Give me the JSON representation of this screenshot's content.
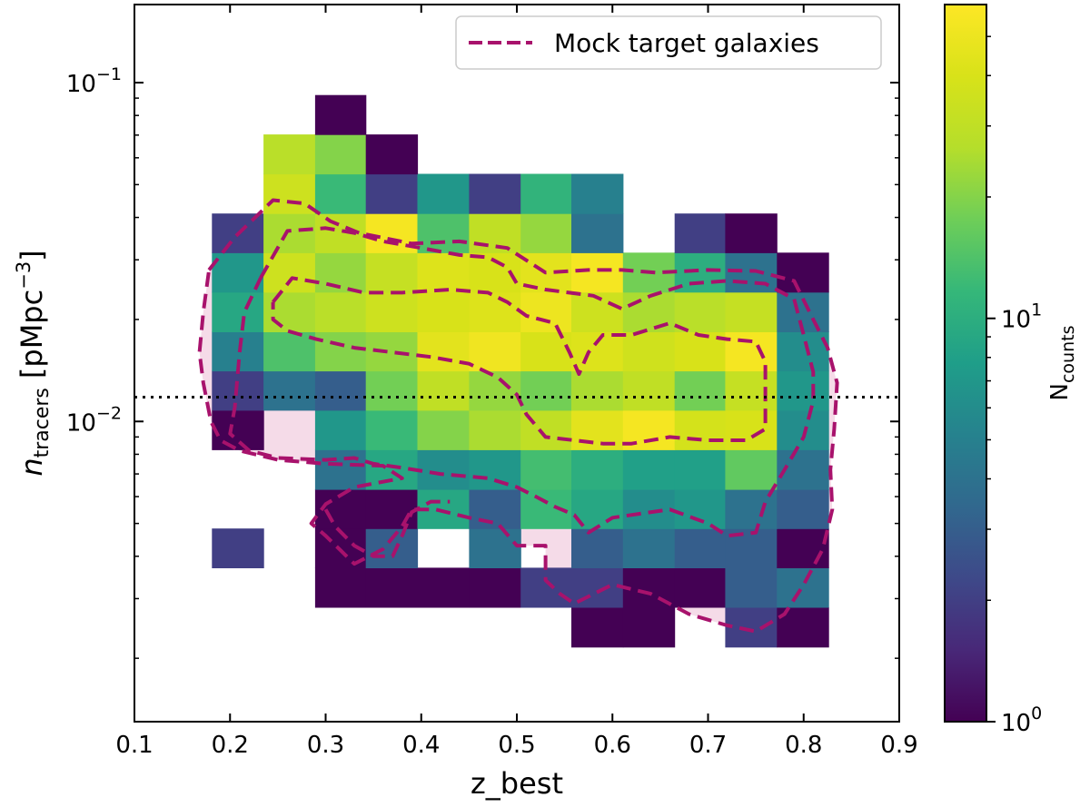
{
  "chart_data": {
    "type": "heatmap",
    "scale": "log2d",
    "xlabel": "z_best",
    "ylabel_main": "n",
    "ylabel_sub": "tracers",
    "ylabel_unit": "[pMpc",
    "ylabel_unit_exp": "−3",
    "ylabel_unit_close": "]",
    "xlim": [
      0.1,
      0.9
    ],
    "ylim": [
      0.0013,
      0.17
    ],
    "x_ticks": [
      {
        "value": 0.1,
        "label": "0.1"
      },
      {
        "value": 0.2,
        "label": "0.2"
      },
      {
        "value": 0.3,
        "label": "0.3"
      },
      {
        "value": 0.4,
        "label": "0.4"
      },
      {
        "value": 0.5,
        "label": "0.5"
      },
      {
        "value": 0.6,
        "label": "0.6"
      },
      {
        "value": 0.7,
        "label": "0.7"
      },
      {
        "value": 0.8,
        "label": "0.8"
      },
      {
        "value": 0.9,
        "label": "0.9"
      }
    ],
    "y_major_ticks": [
      {
        "value": 0.1,
        "base": "10",
        "exp": "−1"
      },
      {
        "value": 0.01,
        "base": "10",
        "exp": "−2"
      }
    ],
    "y_minor_ticks": [
      0.002,
      0.003,
      0.004,
      0.005,
      0.006,
      0.007,
      0.008,
      0.009,
      0.02,
      0.03,
      0.04,
      0.05,
      0.06,
      0.07,
      0.08,
      0.09
    ],
    "x_bin_edges": [
      0.181,
      0.235,
      0.289,
      0.342,
      0.396,
      0.45,
      0.504,
      0.557,
      0.611,
      0.665,
      0.718,
      0.772,
      0.826
    ],
    "y_bin_edges": [
      0.00216,
      0.00283,
      0.0037,
      0.00483,
      0.00631,
      0.00826,
      0.0108,
      0.0141,
      0.0184,
      0.0241,
      0.0315,
      0.0411,
      0.0538,
      0.0703,
      0.0919
    ],
    "counts": [
      [
        0,
        0,
        0,
        0,
        0,
        0,
        0,
        1,
        1,
        0,
        2,
        1
      ],
      [
        0,
        0,
        1,
        1,
        1,
        1,
        2,
        2,
        1,
        1,
        3,
        4
      ],
      [
        2,
        0,
        1,
        3,
        0,
        4,
        0,
        3,
        4,
        3,
        3,
        1
      ],
      [
        0,
        0,
        1,
        1,
        9,
        3,
        12,
        9,
        6,
        7,
        4,
        3
      ],
      [
        0,
        0,
        4,
        9,
        6,
        7,
        13,
        10,
        8,
        8,
        16,
        4
      ],
      [
        1,
        0,
        7,
        12,
        20,
        25,
        30,
        45,
        55,
        38,
        40,
        6
      ],
      [
        2,
        4,
        3,
        18,
        30,
        22,
        18,
        25,
        30,
        18,
        32,
        7
      ],
      [
        5,
        14,
        20,
        22,
        45,
        52,
        40,
        42,
        36,
        40,
        55,
        6
      ],
      [
        9,
        25,
        28,
        35,
        40,
        42,
        50,
        35,
        25,
        28,
        32,
        4
      ],
      [
        7,
        35,
        22,
        32,
        42,
        40,
        45,
        55,
        18,
        10,
        4,
        1
      ],
      [
        2,
        25,
        30,
        55,
        14,
        30,
        22,
        4,
        0,
        2,
        1,
        0
      ],
      [
        0,
        35,
        12,
        2,
        7,
        2,
        11,
        5,
        0,
        0,
        0,
        0
      ],
      [
        0,
        28,
        20,
        1,
        0,
        0,
        0,
        0,
        0,
        0,
        0,
        0
      ],
      [
        0,
        0,
        1,
        0,
        0,
        0,
        0,
        0,
        0,
        0,
        0,
        0
      ]
    ],
    "reference_line": {
      "y": 0.0118,
      "style": "dotted",
      "color": "#000000"
    },
    "contour_color": "#a8126c",
    "contour_fill": "#f5dbe8",
    "contours": [
      {
        "name": "outer",
        "filled": true,
        "points": [
          [
            0.178,
            0.028
          ],
          [
            0.205,
            0.035
          ],
          [
            0.245,
            0.045
          ],
          [
            0.278,
            0.044
          ],
          [
            0.305,
            0.039
          ],
          [
            0.335,
            0.036
          ],
          [
            0.39,
            0.0335
          ],
          [
            0.44,
            0.034
          ],
          [
            0.49,
            0.0325
          ],
          [
            0.53,
            0.0275
          ],
          [
            0.575,
            0.028
          ],
          [
            0.61,
            0.028
          ],
          [
            0.645,
            0.0275
          ],
          [
            0.7,
            0.028
          ],
          [
            0.75,
            0.0278
          ],
          [
            0.79,
            0.026
          ],
          [
            0.81,
            0.02
          ],
          [
            0.825,
            0.0165
          ],
          [
            0.835,
            0.013
          ],
          [
            0.832,
            0.0095
          ],
          [
            0.828,
            0.0072
          ],
          [
            0.83,
            0.0055
          ],
          [
            0.82,
            0.0042
          ],
          [
            0.8,
            0.0033
          ],
          [
            0.78,
            0.0027
          ],
          [
            0.75,
            0.0024
          ],
          [
            0.72,
            0.0025
          ],
          [
            0.68,
            0.0027
          ],
          [
            0.64,
            0.0031
          ],
          [
            0.6,
            0.0033
          ],
          [
            0.56,
            0.0029
          ],
          [
            0.545,
            0.0031
          ],
          [
            0.53,
            0.0034
          ],
          [
            0.53,
            0.0043
          ],
          [
            0.5,
            0.0043
          ],
          [
            0.48,
            0.005
          ],
          [
            0.45,
            0.0052
          ],
          [
            0.415,
            0.0055
          ],
          [
            0.39,
            0.0055
          ],
          [
            0.38,
            0.0049
          ],
          [
            0.36,
            0.0042
          ],
          [
            0.33,
            0.0038
          ],
          [
            0.3,
            0.0046
          ],
          [
            0.285,
            0.005
          ],
          [
            0.3,
            0.0057
          ],
          [
            0.33,
            0.0064
          ],
          [
            0.38,
            0.0068
          ],
          [
            0.36,
            0.0074
          ],
          [
            0.3,
            0.0075
          ],
          [
            0.25,
            0.0077
          ],
          [
            0.21,
            0.0082
          ],
          [
            0.19,
            0.0088
          ],
          [
            0.18,
            0.01
          ],
          [
            0.172,
            0.013
          ],
          [
            0.168,
            0.016
          ],
          [
            0.172,
            0.021
          ],
          [
            0.178,
            0.028
          ]
        ]
      },
      {
        "name": "middle",
        "filled": false,
        "points": [
          [
            0.232,
            0.0265
          ],
          [
            0.26,
            0.0365
          ],
          [
            0.3,
            0.0372
          ],
          [
            0.33,
            0.036
          ],
          [
            0.36,
            0.034
          ],
          [
            0.4,
            0.0325
          ],
          [
            0.44,
            0.031
          ],
          [
            0.47,
            0.0305
          ],
          [
            0.49,
            0.0285
          ],
          [
            0.5,
            0.0255
          ],
          [
            0.53,
            0.0245
          ],
          [
            0.58,
            0.0235
          ],
          [
            0.61,
            0.0215
          ],
          [
            0.64,
            0.0235
          ],
          [
            0.68,
            0.0255
          ],
          [
            0.72,
            0.026
          ],
          [
            0.76,
            0.0255
          ],
          [
            0.79,
            0.023
          ],
          [
            0.8,
            0.018
          ],
          [
            0.81,
            0.014
          ],
          [
            0.81,
            0.0115
          ],
          [
            0.8,
            0.009
          ],
          [
            0.78,
            0.0072
          ],
          [
            0.76,
            0.0058
          ],
          [
            0.75,
            0.0047
          ],
          [
            0.72,
            0.0046
          ],
          [
            0.7,
            0.005
          ],
          [
            0.66,
            0.0055
          ],
          [
            0.6,
            0.0052
          ],
          [
            0.575,
            0.0047
          ],
          [
            0.56,
            0.0053
          ],
          [
            0.54,
            0.0056
          ],
          [
            0.52,
            0.006
          ],
          [
            0.5,
            0.0064
          ],
          [
            0.47,
            0.0068
          ],
          [
            0.42,
            0.007
          ],
          [
            0.38,
            0.0073
          ],
          [
            0.35,
            0.0075
          ],
          [
            0.33,
            0.0078
          ],
          [
            0.3,
            0.0077
          ],
          [
            0.25,
            0.0078
          ],
          [
            0.22,
            0.0082
          ],
          [
            0.2,
            0.0092
          ],
          [
            0.205,
            0.011
          ],
          [
            0.21,
            0.016
          ],
          [
            0.215,
            0.021
          ],
          [
            0.232,
            0.0265
          ]
        ]
      },
      {
        "name": "inner",
        "filled": false,
        "points": [
          [
            0.245,
            0.0225
          ],
          [
            0.265,
            0.0265
          ],
          [
            0.3,
            0.0255
          ],
          [
            0.34,
            0.024
          ],
          [
            0.38,
            0.024
          ],
          [
            0.43,
            0.0245
          ],
          [
            0.47,
            0.024
          ],
          [
            0.49,
            0.0225
          ],
          [
            0.51,
            0.0205
          ],
          [
            0.54,
            0.0195
          ],
          [
            0.555,
            0.016
          ],
          [
            0.565,
            0.0138
          ],
          [
            0.575,
            0.016
          ],
          [
            0.59,
            0.018
          ],
          [
            0.62,
            0.018
          ],
          [
            0.66,
            0.0195
          ],
          [
            0.69,
            0.018
          ],
          [
            0.72,
            0.0175
          ],
          [
            0.75,
            0.0172
          ],
          [
            0.76,
            0.015
          ],
          [
            0.76,
            0.012
          ],
          [
            0.76,
            0.0095
          ],
          [
            0.74,
            0.0088
          ],
          [
            0.7,
            0.0088
          ],
          [
            0.66,
            0.009
          ],
          [
            0.62,
            0.0086
          ],
          [
            0.59,
            0.0086
          ],
          [
            0.56,
            0.0088
          ],
          [
            0.53,
            0.009
          ],
          [
            0.51,
            0.0105
          ],
          [
            0.5,
            0.012
          ],
          [
            0.48,
            0.0135
          ],
          [
            0.45,
            0.0148
          ],
          [
            0.41,
            0.0155
          ],
          [
            0.37,
            0.016
          ],
          [
            0.33,
            0.0165
          ],
          [
            0.29,
            0.0175
          ],
          [
            0.26,
            0.0185
          ],
          [
            0.245,
            0.02
          ],
          [
            0.245,
            0.0225
          ]
        ]
      },
      {
        "name": "lower-left",
        "filled": false,
        "points": [
          [
            0.3,
            0.0055
          ],
          [
            0.31,
            0.0049
          ],
          [
            0.33,
            0.0043
          ],
          [
            0.35,
            0.004
          ],
          [
            0.37,
            0.004
          ],
          [
            0.38,
            0.0046
          ],
          [
            0.39,
            0.0054
          ],
          [
            0.41,
            0.0058
          ],
          [
            0.43,
            0.0058
          ]
        ]
      }
    ],
    "legend": {
      "label": "Mock target galaxies",
      "style": "dashed",
      "position": "top-right"
    },
    "colorbar": {
      "label_main": "N",
      "label_sub": "counts",
      "vmin": 1,
      "vmax": 60,
      "scale": "log",
      "colormap": "viridis",
      "ticks": [
        {
          "value": 1,
          "base": "10",
          "exp": "0"
        },
        {
          "value": 10,
          "base": "10",
          "exp": "1"
        }
      ],
      "minor_ticks": [
        2,
        3,
        4,
        5,
        6,
        7,
        8,
        9,
        20,
        30,
        40,
        50
      ]
    }
  }
}
